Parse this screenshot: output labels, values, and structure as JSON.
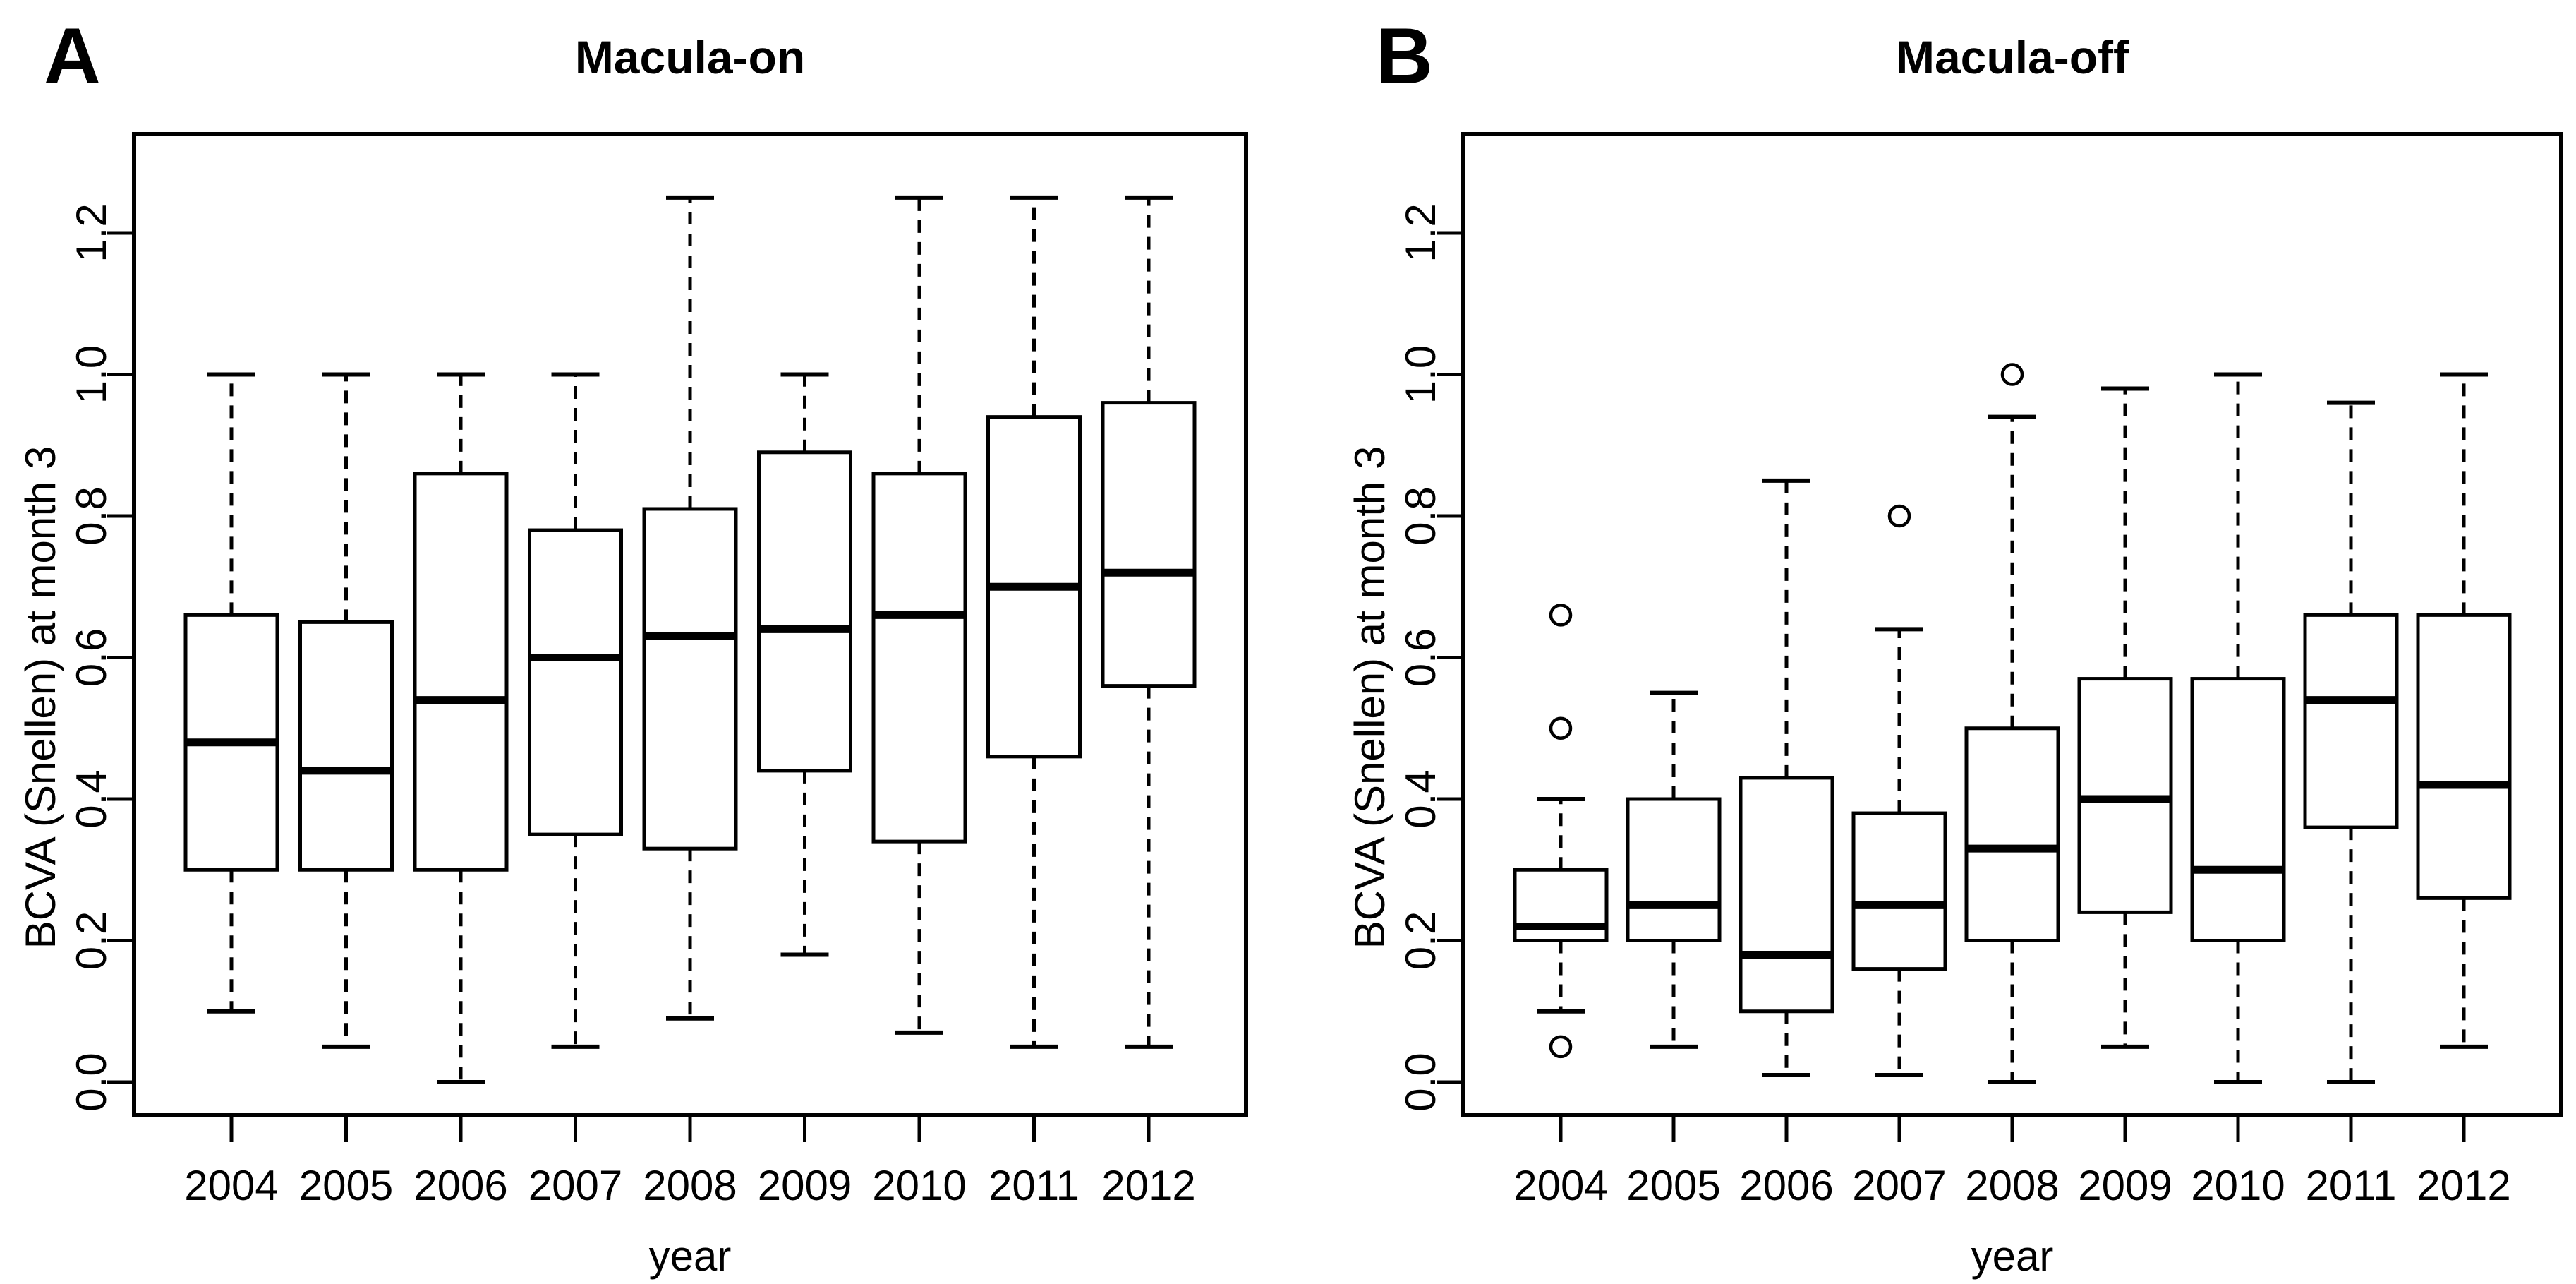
{
  "figure": {
    "background": "#ffffff",
    "ink_color": "#000000"
  },
  "chart_data": [
    {
      "type": "boxplot",
      "panel_letter": "A",
      "title": "Macula-on",
      "xlabel": "year",
      "ylabel": "BCVA (Snellen) at month 3",
      "categories": [
        "2004",
        "2005",
        "2006",
        "2007",
        "2008",
        "2009",
        "2010",
        "2011",
        "2012"
      ],
      "ylim": [
        0.0,
        1.25
      ],
      "ytick_labels": [
        "0.0",
        "0.2",
        "0.4",
        "0.6",
        "0.8",
        "1.0",
        "1.2"
      ],
      "ytick_values": [
        0.0,
        0.2,
        0.4,
        0.6,
        0.8,
        1.0,
        1.2
      ],
      "grid": false,
      "legend": "none",
      "series": [
        {
          "category": "2004",
          "whisker_low": 0.1,
          "q1": 0.3,
          "median": 0.48,
          "q3": 0.66,
          "whisker_high": 1.0,
          "outliers": []
        },
        {
          "category": "2005",
          "whisker_low": 0.05,
          "q1": 0.3,
          "median": 0.44,
          "q3": 0.65,
          "whisker_high": 1.0,
          "outliers": []
        },
        {
          "category": "2006",
          "whisker_low": 0.0,
          "q1": 0.3,
          "median": 0.54,
          "q3": 0.86,
          "whisker_high": 1.0,
          "outliers": []
        },
        {
          "category": "2007",
          "whisker_low": 0.05,
          "q1": 0.35,
          "median": 0.6,
          "q3": 0.78,
          "whisker_high": 1.0,
          "outliers": []
        },
        {
          "category": "2008",
          "whisker_low": 0.09,
          "q1": 0.33,
          "median": 0.63,
          "q3": 0.81,
          "whisker_high": 1.25,
          "outliers": []
        },
        {
          "category": "2009",
          "whisker_low": 0.18,
          "q1": 0.44,
          "median": 0.64,
          "q3": 0.89,
          "whisker_high": 1.0,
          "outliers": []
        },
        {
          "category": "2010",
          "whisker_low": 0.07,
          "q1": 0.34,
          "median": 0.66,
          "q3": 0.86,
          "whisker_high": 1.25,
          "outliers": []
        },
        {
          "category": "2011",
          "whisker_low": 0.05,
          "q1": 0.46,
          "median": 0.7,
          "q3": 0.94,
          "whisker_high": 1.25,
          "outliers": []
        },
        {
          "category": "2012",
          "whisker_low": 0.05,
          "q1": 0.56,
          "median": 0.72,
          "q3": 0.96,
          "whisker_high": 1.25,
          "outliers": []
        }
      ]
    },
    {
      "type": "boxplot",
      "panel_letter": "B",
      "title": "Macula-off",
      "xlabel": "year",
      "ylabel": "BCVA (Snellen) at month 3",
      "categories": [
        "2004",
        "2005",
        "2006",
        "2007",
        "2008",
        "2009",
        "2010",
        "2011",
        "2012"
      ],
      "ylim": [
        0.0,
        1.0
      ],
      "ytick_labels": [
        "0.0",
        "0.2",
        "0.4",
        "0.6",
        "0.8",
        "1.0",
        "1.2"
      ],
      "ytick_values": [
        0.0,
        0.2,
        0.4,
        0.6,
        0.8,
        1.0,
        1.2
      ],
      "grid": false,
      "legend": "none",
      "series": [
        {
          "category": "2004",
          "whisker_low": 0.1,
          "q1": 0.2,
          "median": 0.22,
          "q3": 0.3,
          "whisker_high": 0.4,
          "outliers": [
            0.66,
            0.5,
            0.05
          ]
        },
        {
          "category": "2005",
          "whisker_low": 0.05,
          "q1": 0.2,
          "median": 0.25,
          "q3": 0.4,
          "whisker_high": 0.55,
          "outliers": []
        },
        {
          "category": "2006",
          "whisker_low": 0.01,
          "q1": 0.1,
          "median": 0.18,
          "q3": 0.43,
          "whisker_high": 0.85,
          "outliers": []
        },
        {
          "category": "2007",
          "whisker_low": 0.01,
          "q1": 0.16,
          "median": 0.25,
          "q3": 0.38,
          "whisker_high": 0.64,
          "outliers": [
            0.8
          ]
        },
        {
          "category": "2008",
          "whisker_low": 0.0,
          "q1": 0.2,
          "median": 0.33,
          "q3": 0.5,
          "whisker_high": 0.94,
          "outliers": [
            1.0
          ]
        },
        {
          "category": "2009",
          "whisker_low": 0.05,
          "q1": 0.24,
          "median": 0.4,
          "q3": 0.57,
          "whisker_high": 0.98,
          "outliers": []
        },
        {
          "category": "2010",
          "whisker_low": 0.0,
          "q1": 0.2,
          "median": 0.3,
          "q3": 0.57,
          "whisker_high": 1.0,
          "outliers": []
        },
        {
          "category": "2011",
          "whisker_low": 0.0,
          "q1": 0.36,
          "median": 0.54,
          "q3": 0.66,
          "whisker_high": 0.96,
          "outliers": []
        },
        {
          "category": "2012",
          "whisker_low": 0.05,
          "q1": 0.26,
          "median": 0.42,
          "q3": 0.66,
          "whisker_high": 1.0,
          "outliers": []
        }
      ]
    }
  ]
}
